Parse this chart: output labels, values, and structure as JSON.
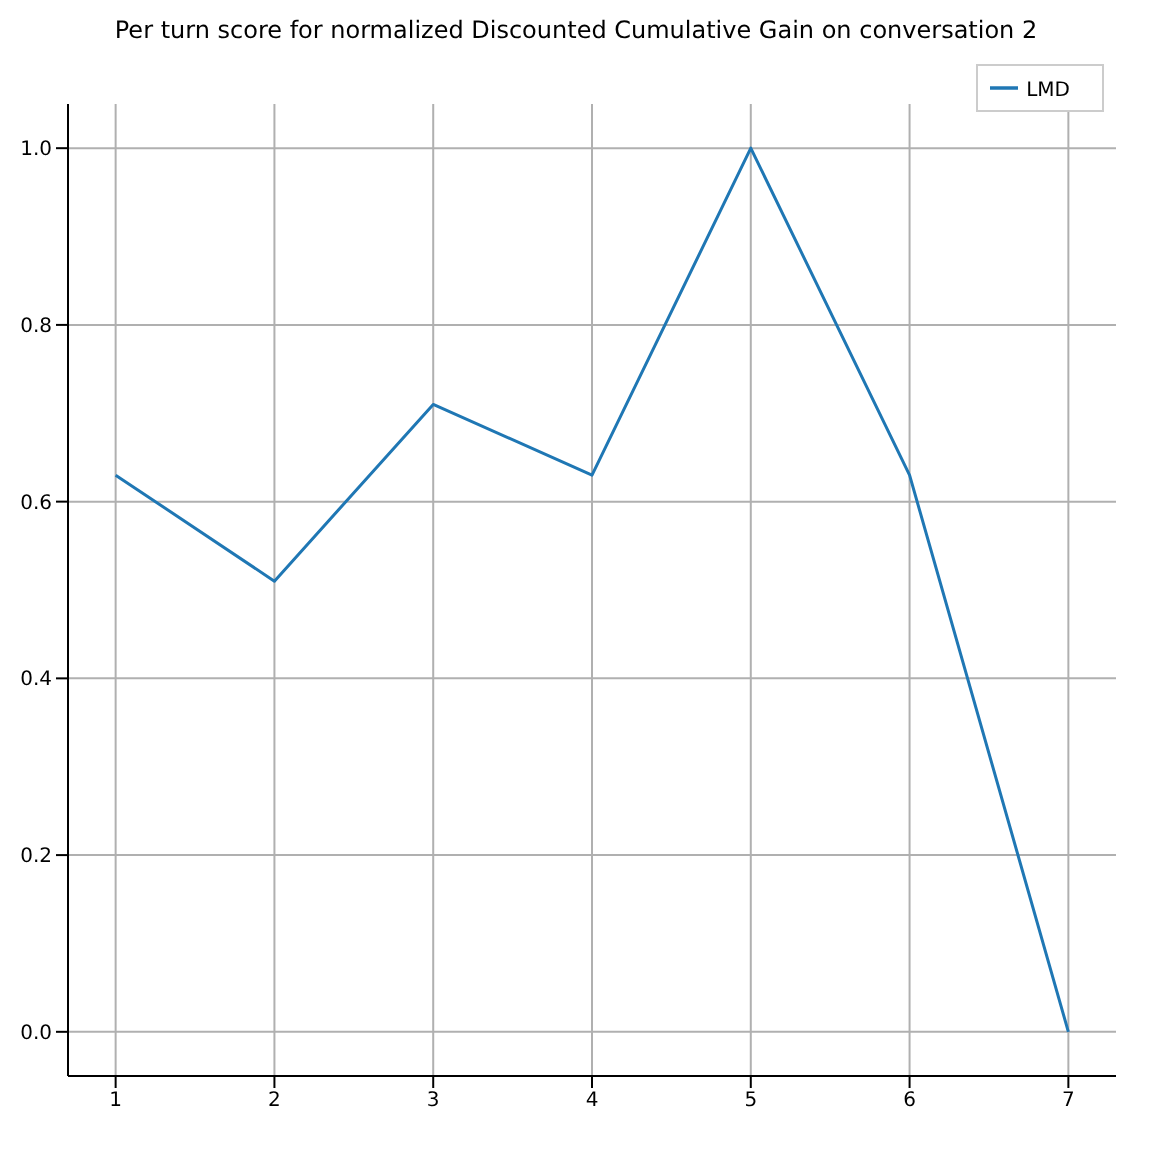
{
  "chart_data": {
    "type": "line",
    "title": "Per turn score for normalized Discounted Cumulative Gain on conversation 2",
    "x": [
      1,
      2,
      3,
      4,
      5,
      6,
      7
    ],
    "series": [
      {
        "name": "LMD",
        "color": "#1f77b4",
        "values": [
          0.63,
          0.51,
          0.71,
          0.63,
          1.0,
          0.63,
          0.0
        ]
      }
    ],
    "xlim": [
      0.7,
      7.3
    ],
    "xticks": [
      1,
      2,
      3,
      4,
      5,
      6,
      7
    ],
    "ylim": [
      -0.05,
      1.05
    ],
    "yticks": [
      {
        "value": 0,
        "label": "0.0"
      },
      {
        "value": 0.2,
        "label": "0.2"
      },
      {
        "value": 0.4,
        "label": "0.4"
      },
      {
        "value": 0.6,
        "label": "0.6"
      },
      {
        "value": 0.8,
        "label": "0.8"
      },
      {
        "value": 1,
        "label": "1.0"
      }
    ],
    "grid": true,
    "legend": "top right",
    "marker": "none",
    "line_style": "solid"
  }
}
